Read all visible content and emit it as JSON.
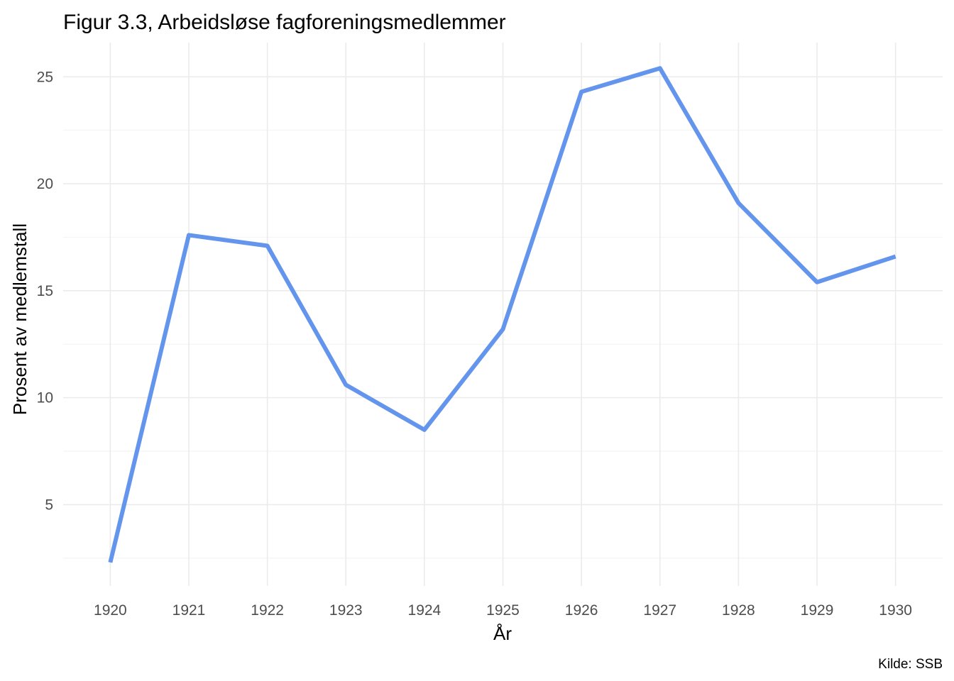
{
  "chart_data": {
    "type": "line",
    "title": "Figur 3.3, Arbeidsløse fagforeningsmedlemmer",
    "xlabel": "År",
    "ylabel": "Prosent av medlemstall",
    "caption": "Kilde: SSB",
    "x": [
      1920,
      1921,
      1922,
      1923,
      1924,
      1925,
      1926,
      1927,
      1928,
      1929,
      1930
    ],
    "x_tick_labels": [
      "1920",
      "1921",
      "1922",
      "1923",
      "1924",
      "1925",
      "1926",
      "1927",
      "1928",
      "1929",
      "1930"
    ],
    "y_ticks": [
      5,
      10,
      15,
      20,
      25
    ],
    "y_tick_labels": [
      "5",
      "10",
      "15",
      "20",
      "25"
    ],
    "xlim": [
      1919.4,
      1930.6
    ],
    "ylim": [
      1.2,
      26.6
    ],
    "grid": true,
    "legend": "none",
    "series": [
      {
        "color": "#6495ED",
        "values": [
          2.3,
          17.6,
          17.1,
          10.6,
          8.5,
          13.2,
          24.3,
          25.4,
          19.1,
          15.4,
          16.6
        ]
      }
    ]
  }
}
